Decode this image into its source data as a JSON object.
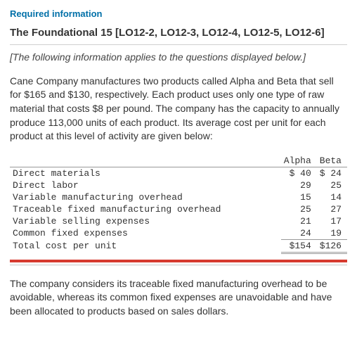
{
  "header": {
    "required_label": "Required information",
    "title": "The Foundational 15 [LO12-2, LO12-3, LO12-4, LO12-5, LO12-6]",
    "applies_note": "[The following information applies to the questions displayed below.]"
  },
  "paragraphs": {
    "p1": "Cane Company manufactures two products called Alpha and Beta that sell for $165 and $130, respectively. Each product uses only one type of raw material that costs $8 per pound. The company has the capacity to annually produce 113,000 units of each product. Its average cost per unit for each product at this level of activity are given below:",
    "p2": "The company considers its traceable fixed manufacturing overhead to be avoidable, whereas its common fixed expenses are unavoidable and have been allocated to products based on sales dollars."
  },
  "table": {
    "columns": [
      "Alpha",
      "Beta"
    ],
    "rows": [
      {
        "label": "Direct materials",
        "alpha": "$ 40",
        "beta": "$ 24"
      },
      {
        "label": "Direct labor",
        "alpha": "29",
        "beta": "25"
      },
      {
        "label": "Variable manufacturing overhead",
        "alpha": "15",
        "beta": "14"
      },
      {
        "label": "Traceable fixed manufacturing overhead",
        "alpha": "25",
        "beta": "27"
      },
      {
        "label": "Variable selling expenses",
        "alpha": "21",
        "beta": "17"
      },
      {
        "label": "Common fixed expenses",
        "alpha": "24",
        "beta": "19"
      }
    ],
    "total": {
      "label": "Total cost per unit",
      "alpha": "$154",
      "beta": "$126"
    },
    "styling": {
      "font_family": "Courier New",
      "font_size_pt": 10,
      "border_color": "#999999",
      "accent_bar_color": "#d63a2f"
    }
  }
}
